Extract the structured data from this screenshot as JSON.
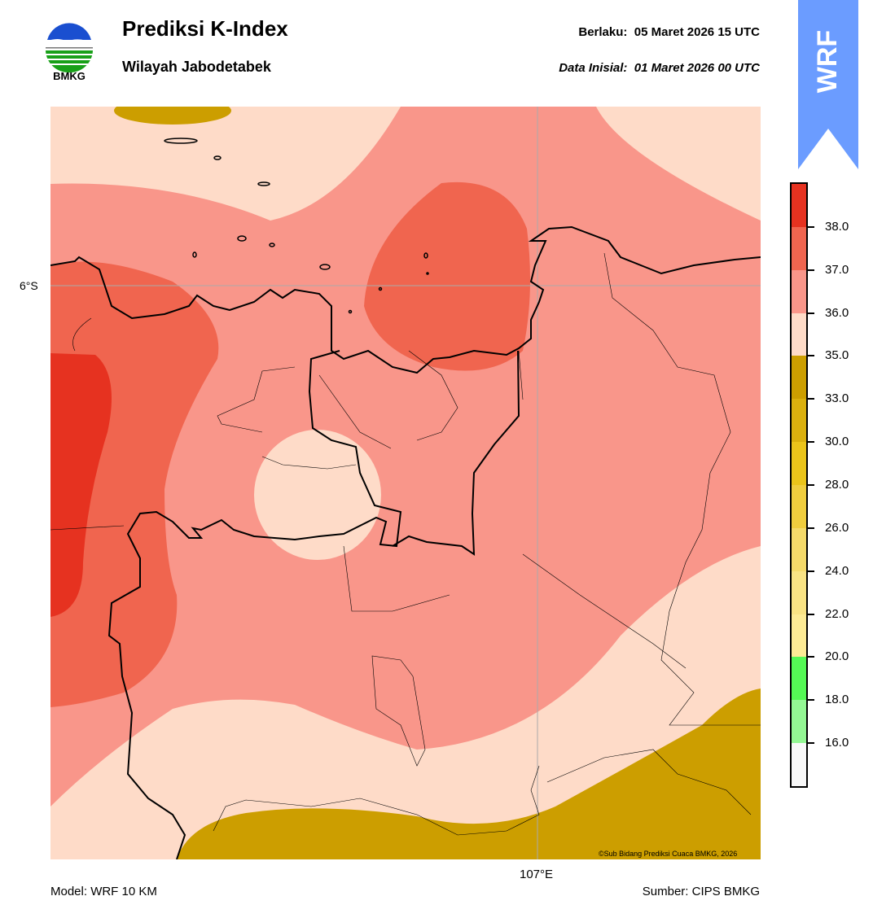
{
  "header": {
    "title": "Prediksi K-Index",
    "subtitle": "Wilayah Jabodetabek",
    "valid_label": "Berlaku:",
    "valid_value": "05 Maret 2026 15 UTC",
    "init_label": "Data Inisial:",
    "init_value": "01 Maret 2026 00 UTC",
    "logo_text": "BMKG",
    "badge_text": "WRF"
  },
  "map": {
    "lat_label": "6°S",
    "lon_label": "107°E",
    "credit": "©Sub Bidang Prediksi Cuaca BMKG, 2026"
  },
  "footer": {
    "model": "Model: WRF 10 KM",
    "source": "Sumber: CIPS BMKG"
  },
  "colorbar": {
    "ticks": [
      "16.0",
      "18.0",
      "20.0",
      "22.0",
      "24.0",
      "26.0",
      "28.0",
      "30.0",
      "33.0",
      "35.0",
      "36.0",
      "37.0",
      "38.0"
    ],
    "colors": [
      "#f8f8f8",
      "#93f793",
      "#55f955",
      "#fdeb95",
      "#f9e384",
      "#f5da6a",
      "#f0cd3e",
      "#ebc41a",
      "#dbb00e",
      "#cc9e00",
      "#fedbc8",
      "#f9968a",
      "#f0654f",
      "#e63220"
    ]
  },
  "colors": {
    "peach": "#fedbc8",
    "salmon": "#f9968a",
    "dark_salmon": "#f0654f",
    "red": "#e63220",
    "gold": "#cc9e00",
    "wrf_badge": "#6b9cff"
  }
}
